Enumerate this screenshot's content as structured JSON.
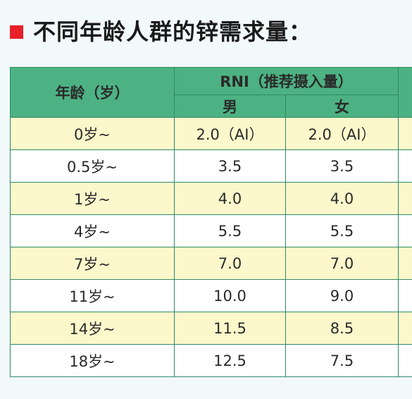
{
  "title": "不同年龄人群的锌需求量：",
  "table": {
    "age_header": "年龄（岁）",
    "rni_header": "RNI（推荐摄入量）",
    "male_header": "男",
    "female_header": "女",
    "rows": [
      {
        "age": "0岁~",
        "male": "2.0（AI）",
        "female": "2.0（AI）"
      },
      {
        "age": "0.5岁~",
        "male": "3.5",
        "female": "3.5"
      },
      {
        "age": "1岁~",
        "male": "4.0",
        "female": "4.0"
      },
      {
        "age": "4岁~",
        "male": "5.5",
        "female": "5.5"
      },
      {
        "age": "7岁~",
        "male": "7.0",
        "female": "7.0"
      },
      {
        "age": "11岁~",
        "male": "10.0",
        "female": "9.0"
      },
      {
        "age": "14岁~",
        "male": "11.5",
        "female": "8.5"
      },
      {
        "age": "18岁~",
        "male": "12.5",
        "female": "7.5"
      }
    ]
  },
  "colors": {
    "accent_square": "#e8202a",
    "header_green": "#4db283",
    "odd_row": "#fcf8cc",
    "even_row": "#ffffff"
  }
}
